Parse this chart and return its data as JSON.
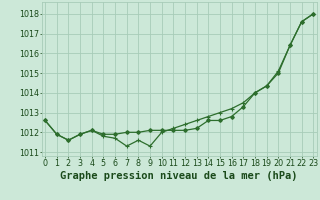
{
  "title": "Graphe pression niveau de la mer (hPa)",
  "hours": [
    0,
    1,
    2,
    3,
    4,
    5,
    6,
    7,
    8,
    9,
    10,
    11,
    12,
    13,
    14,
    15,
    16,
    17,
    18,
    19,
    20,
    21,
    22,
    23
  ],
  "line1": [
    1012.6,
    1011.9,
    1011.6,
    1011.9,
    1012.1,
    1011.8,
    1011.7,
    1011.3,
    1011.6,
    1011.3,
    1012.0,
    1012.2,
    1012.4,
    1012.6,
    1012.8,
    1013.0,
    1013.2,
    1013.5,
    1014.0,
    1014.35,
    1015.1,
    1016.4,
    1017.6,
    1018.0
  ],
  "line2": [
    1012.6,
    1011.9,
    1011.6,
    1011.9,
    1012.1,
    1011.9,
    1011.9,
    1012.0,
    1012.0,
    1012.1,
    1012.1,
    1012.1,
    1012.1,
    1012.2,
    1012.6,
    1012.6,
    1012.8,
    1013.3,
    1014.0,
    1014.35,
    1015.0,
    1016.4,
    1017.6,
    1018.0
  ],
  "line_color": "#2d6e2d",
  "bg_color": "#cce8d8",
  "grid_color": "#a8ccb8",
  "text_color": "#1a4a1a",
  "ylim": [
    1010.8,
    1018.6
  ],
  "yticks": [
    1011,
    1012,
    1013,
    1014,
    1015,
    1016,
    1017,
    1018
  ],
  "xlim": [
    -0.3,
    23.3
  ],
  "title_fontsize": 7.5,
  "tick_fontsize": 5.8
}
